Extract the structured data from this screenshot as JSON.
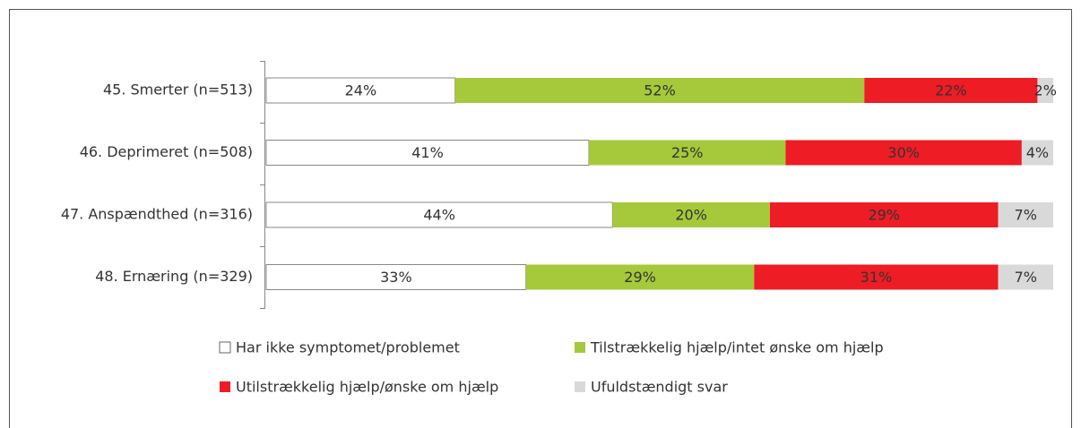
{
  "chart_data": {
    "type": "bar",
    "orientation": "horizontal",
    "stacked": true,
    "categories": [
      "45. Smerter (n=513)",
      "46. Deprimeret (n=508)",
      "47. Anspændthed (n=316)",
      "48. Ernæring (n=329)"
    ],
    "series": [
      {
        "name": "Har ikke symptomet/problemet",
        "color": "#ffffff",
        "values": [
          24,
          41,
          44,
          33
        ],
        "value_labels": [
          "24%",
          "41%",
          "44%",
          "33%"
        ]
      },
      {
        "name": "Tilstrækkelig hjælp/intet ønske om hjælp",
        "color": "#a5c93a",
        "values": [
          52,
          25,
          20,
          29
        ],
        "value_labels": [
          "52%",
          "25%",
          "20%",
          "29%"
        ]
      },
      {
        "name": "Utilstrækkelig hjælp/ønske om hjælp",
        "color": "#ee1c25",
        "values": [
          22,
          30,
          29,
          31
        ],
        "value_labels": [
          "22%",
          "30%",
          "29%",
          "31%"
        ]
      },
      {
        "name": "Ufuldstændigt svar",
        "color": "#d9d9d9",
        "values": [
          2,
          4,
          7,
          7
        ],
        "value_labels": [
          "2%",
          "4%",
          "7%",
          "7%"
        ]
      }
    ],
    "legend": "bottom"
  }
}
